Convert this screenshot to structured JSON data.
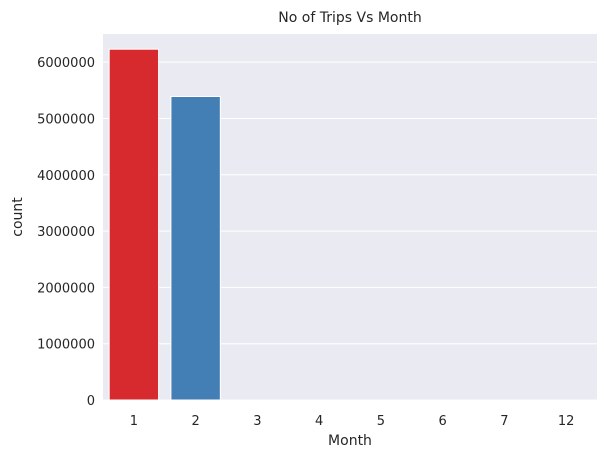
{
  "chart_data": {
    "type": "bar",
    "title": "No of Trips Vs Month",
    "xlabel": "Month",
    "ylabel": "count",
    "categories": [
      "1",
      "2",
      "3",
      "4",
      "5",
      "6",
      "7",
      "12"
    ],
    "values": [
      6230000,
      5390000,
      0,
      0,
      0,
      0,
      0,
      0
    ],
    "ylim": [
      0,
      6500000
    ],
    "yticks": [
      "0",
      "1000000",
      "2000000",
      "3000000",
      "4000000",
      "5000000",
      "6000000"
    ],
    "grid": true,
    "bar_colors": [
      "#d62a2f",
      "#437fb4",
      "#4aa64a",
      "#9a4fa6",
      "#ff8000",
      "#ffff33",
      "#a65628",
      "#f781bf"
    ],
    "plot_background": "#eaeaf2",
    "grid_color": "#ffffff"
  }
}
